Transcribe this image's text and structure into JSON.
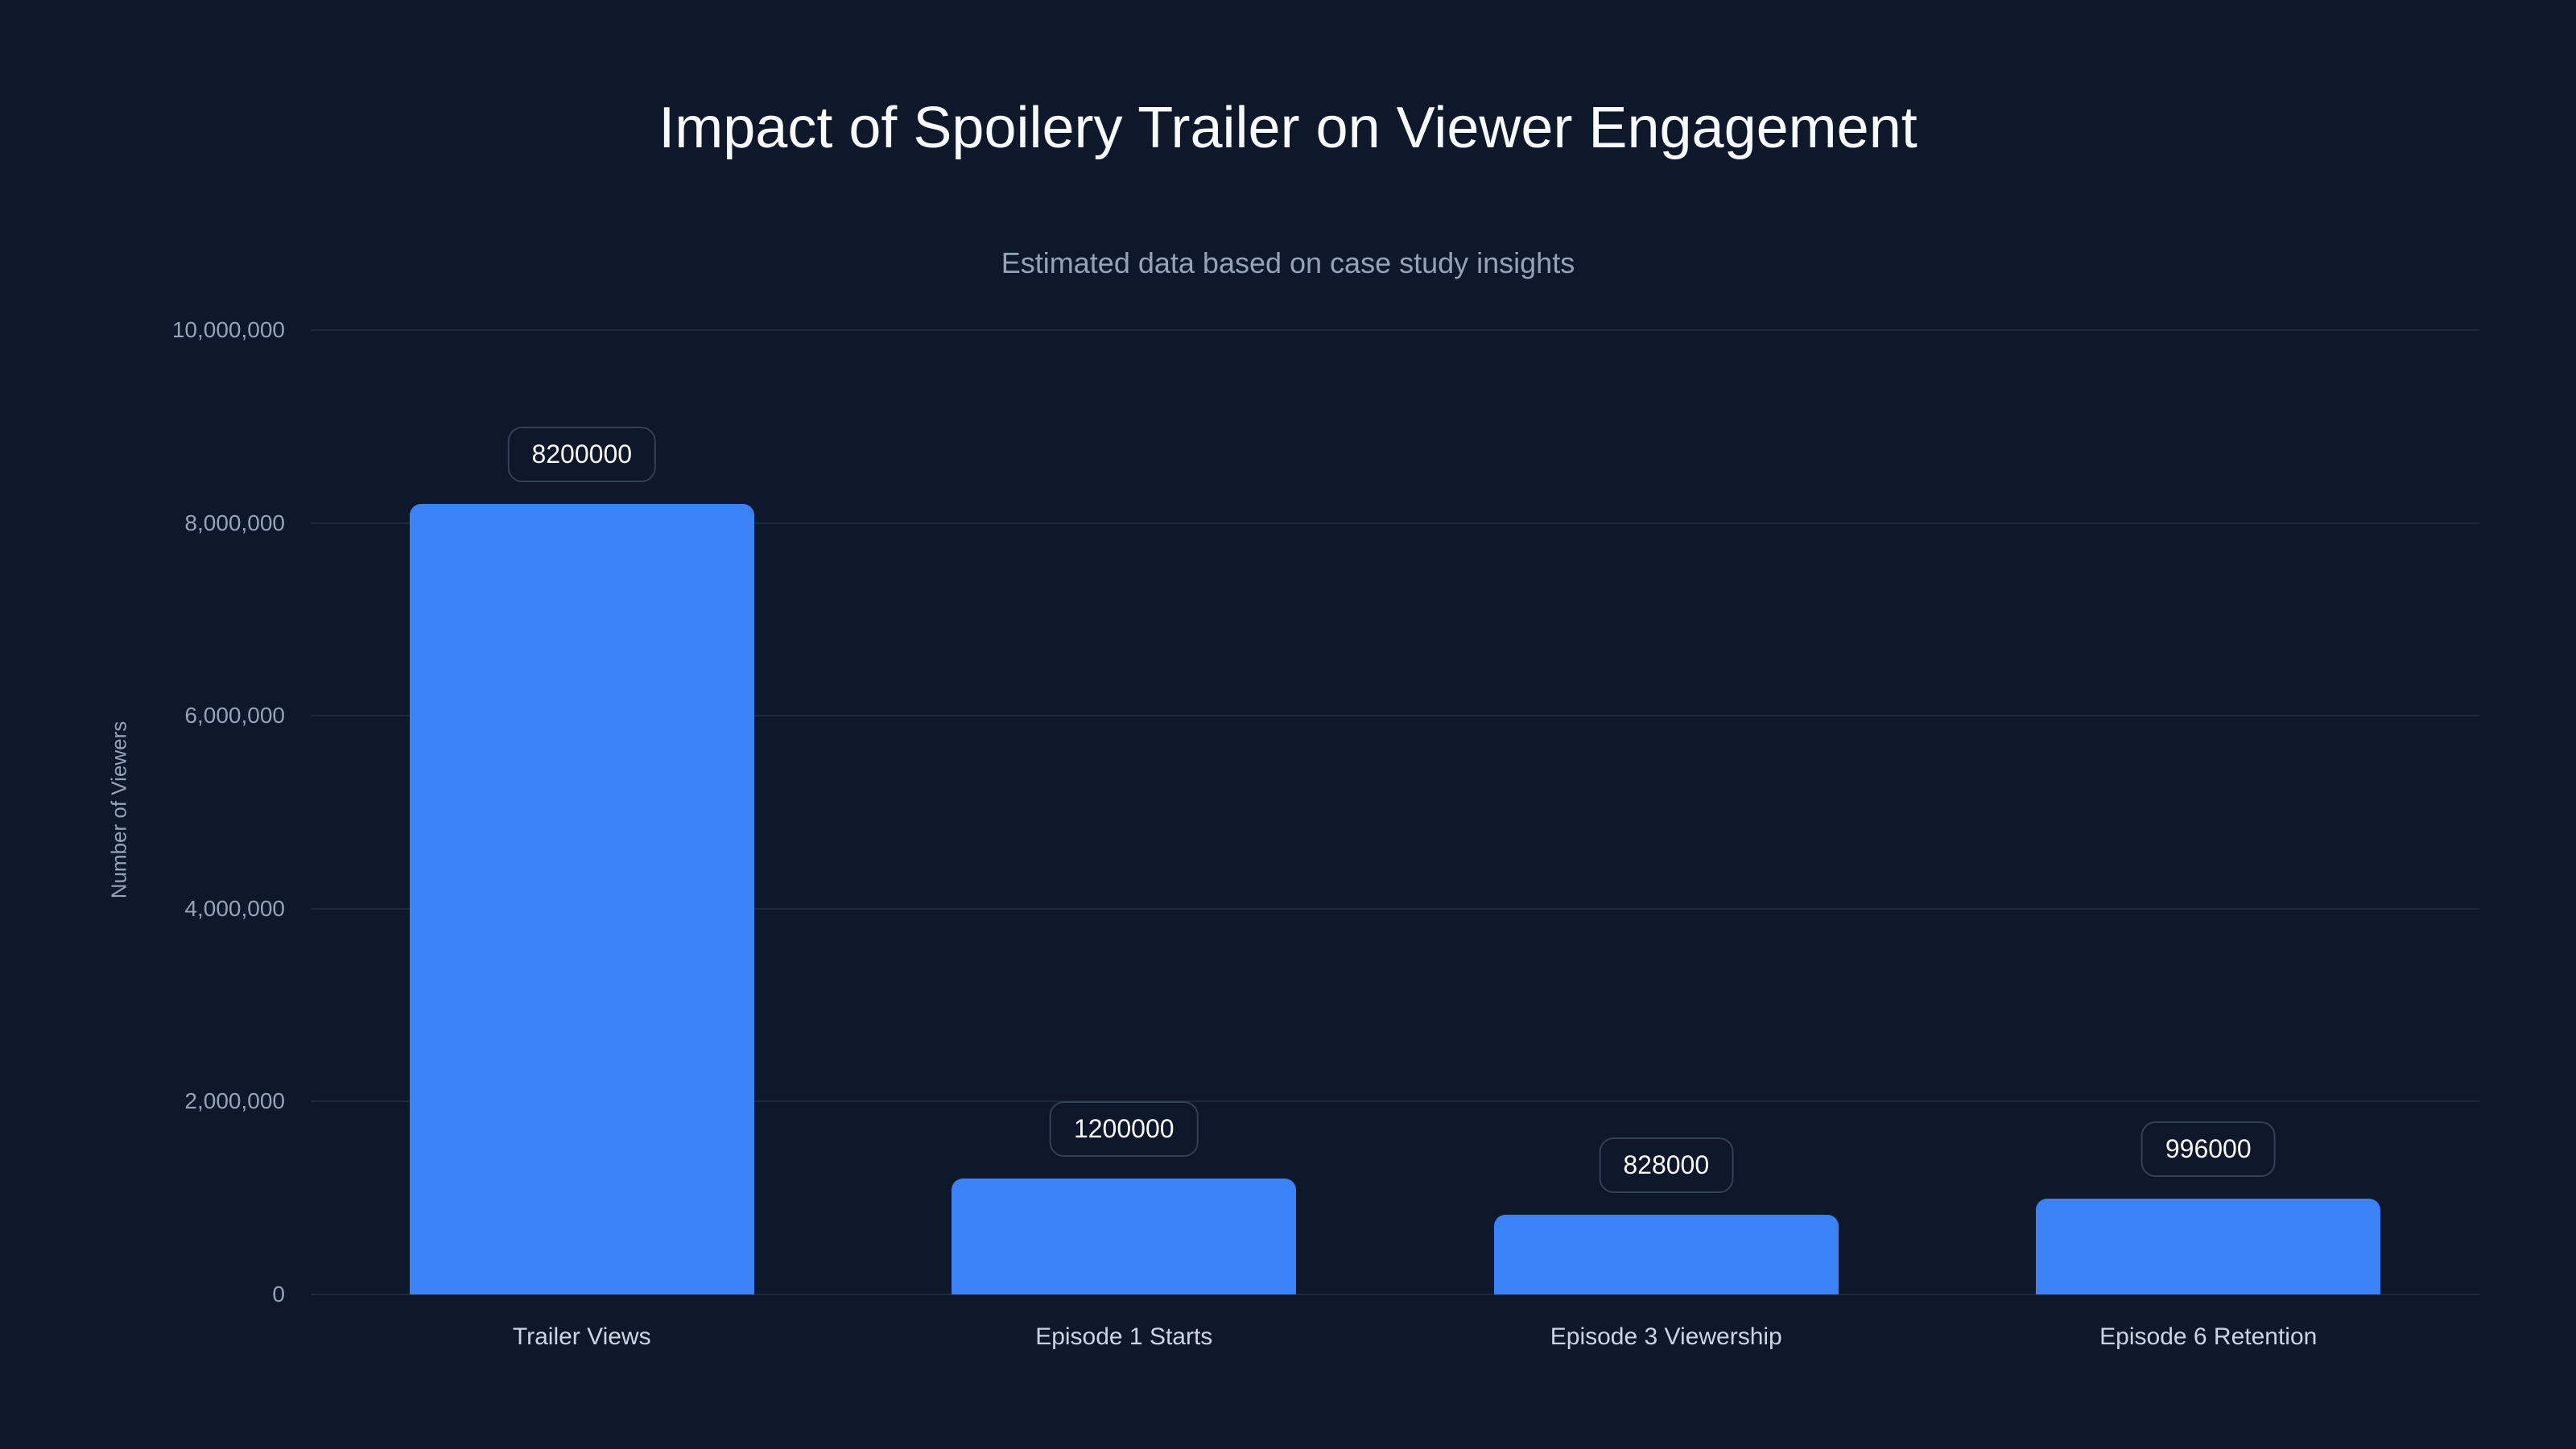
{
  "chart_data": {
    "type": "bar",
    "title": "Impact of Spoilery Trailer on Viewer Engagement",
    "subtitle": "Estimated data based on case study insights",
    "xlabel": "",
    "ylabel": "Number of Viewers",
    "categories": [
      "Trailer Views",
      "Episode 1 Starts",
      "Episode 3 Viewership",
      "Episode 6 Retention"
    ],
    "values": [
      8200000,
      1200000,
      828000,
      996000
    ],
    "value_labels": [
      "8200000",
      "1200000",
      "828000",
      "996000"
    ],
    "ylim": [
      0,
      10000000
    ],
    "yticks": [
      0,
      2000000,
      4000000,
      6000000,
      8000000,
      10000000
    ],
    "ytick_labels": [
      "0",
      "2,000,000",
      "4,000,000",
      "6,000,000",
      "8,000,000",
      "10,000,000"
    ],
    "grid": true,
    "legend": null,
    "colors": {
      "bar": "#3b82f6",
      "background": "#0f172a",
      "grid": "#1e293b",
      "text": "#f8fafc",
      "muted": "#94a3b8"
    }
  }
}
